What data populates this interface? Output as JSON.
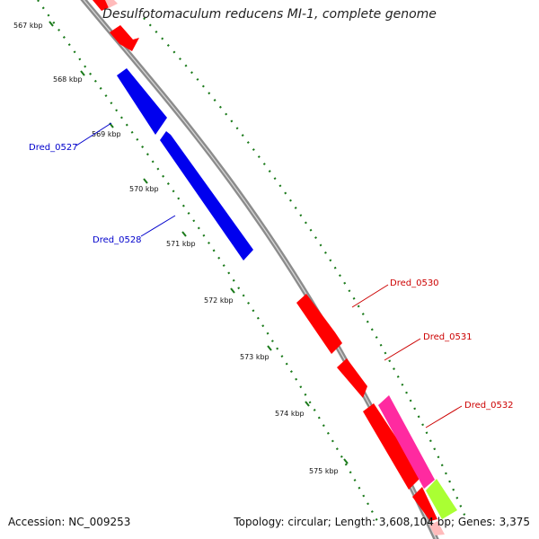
{
  "title": "Desulfotomaculum reducens MI-1, complete genome",
  "footer": {
    "accession": "Accession: NC_009253",
    "summary": "Topology: circular; Length: 3,608,104 bp; Genes: 3,375"
  },
  "colors": {
    "backbone": "#8c8c8c",
    "scale_dots": "#1a7a1a",
    "forward_gene": "#ff0000",
    "reverse_gene": "#0000ee",
    "gene_pink": "#ff2aa0",
    "gene_lime": "#aaff33",
    "fwd_label": "#cc0000",
    "rev_label": "#0000cc"
  },
  "scale_ticks": [
    "567 kbp",
    "568 kbp",
    "569 kbp",
    "570 kbp",
    "571 kbp",
    "572 kbp",
    "573 kbp",
    "574 kbp",
    "575 kbp"
  ],
  "gene_labels": [
    {
      "text": "Dred_0527",
      "strand": "reverse"
    },
    {
      "text": "Dred_0528",
      "strand": "reverse"
    },
    {
      "text": "Dred_0530",
      "strand": "forward"
    },
    {
      "text": "Dred_0531",
      "strand": "forward"
    },
    {
      "text": "Dred_0532",
      "strand": "forward"
    }
  ]
}
